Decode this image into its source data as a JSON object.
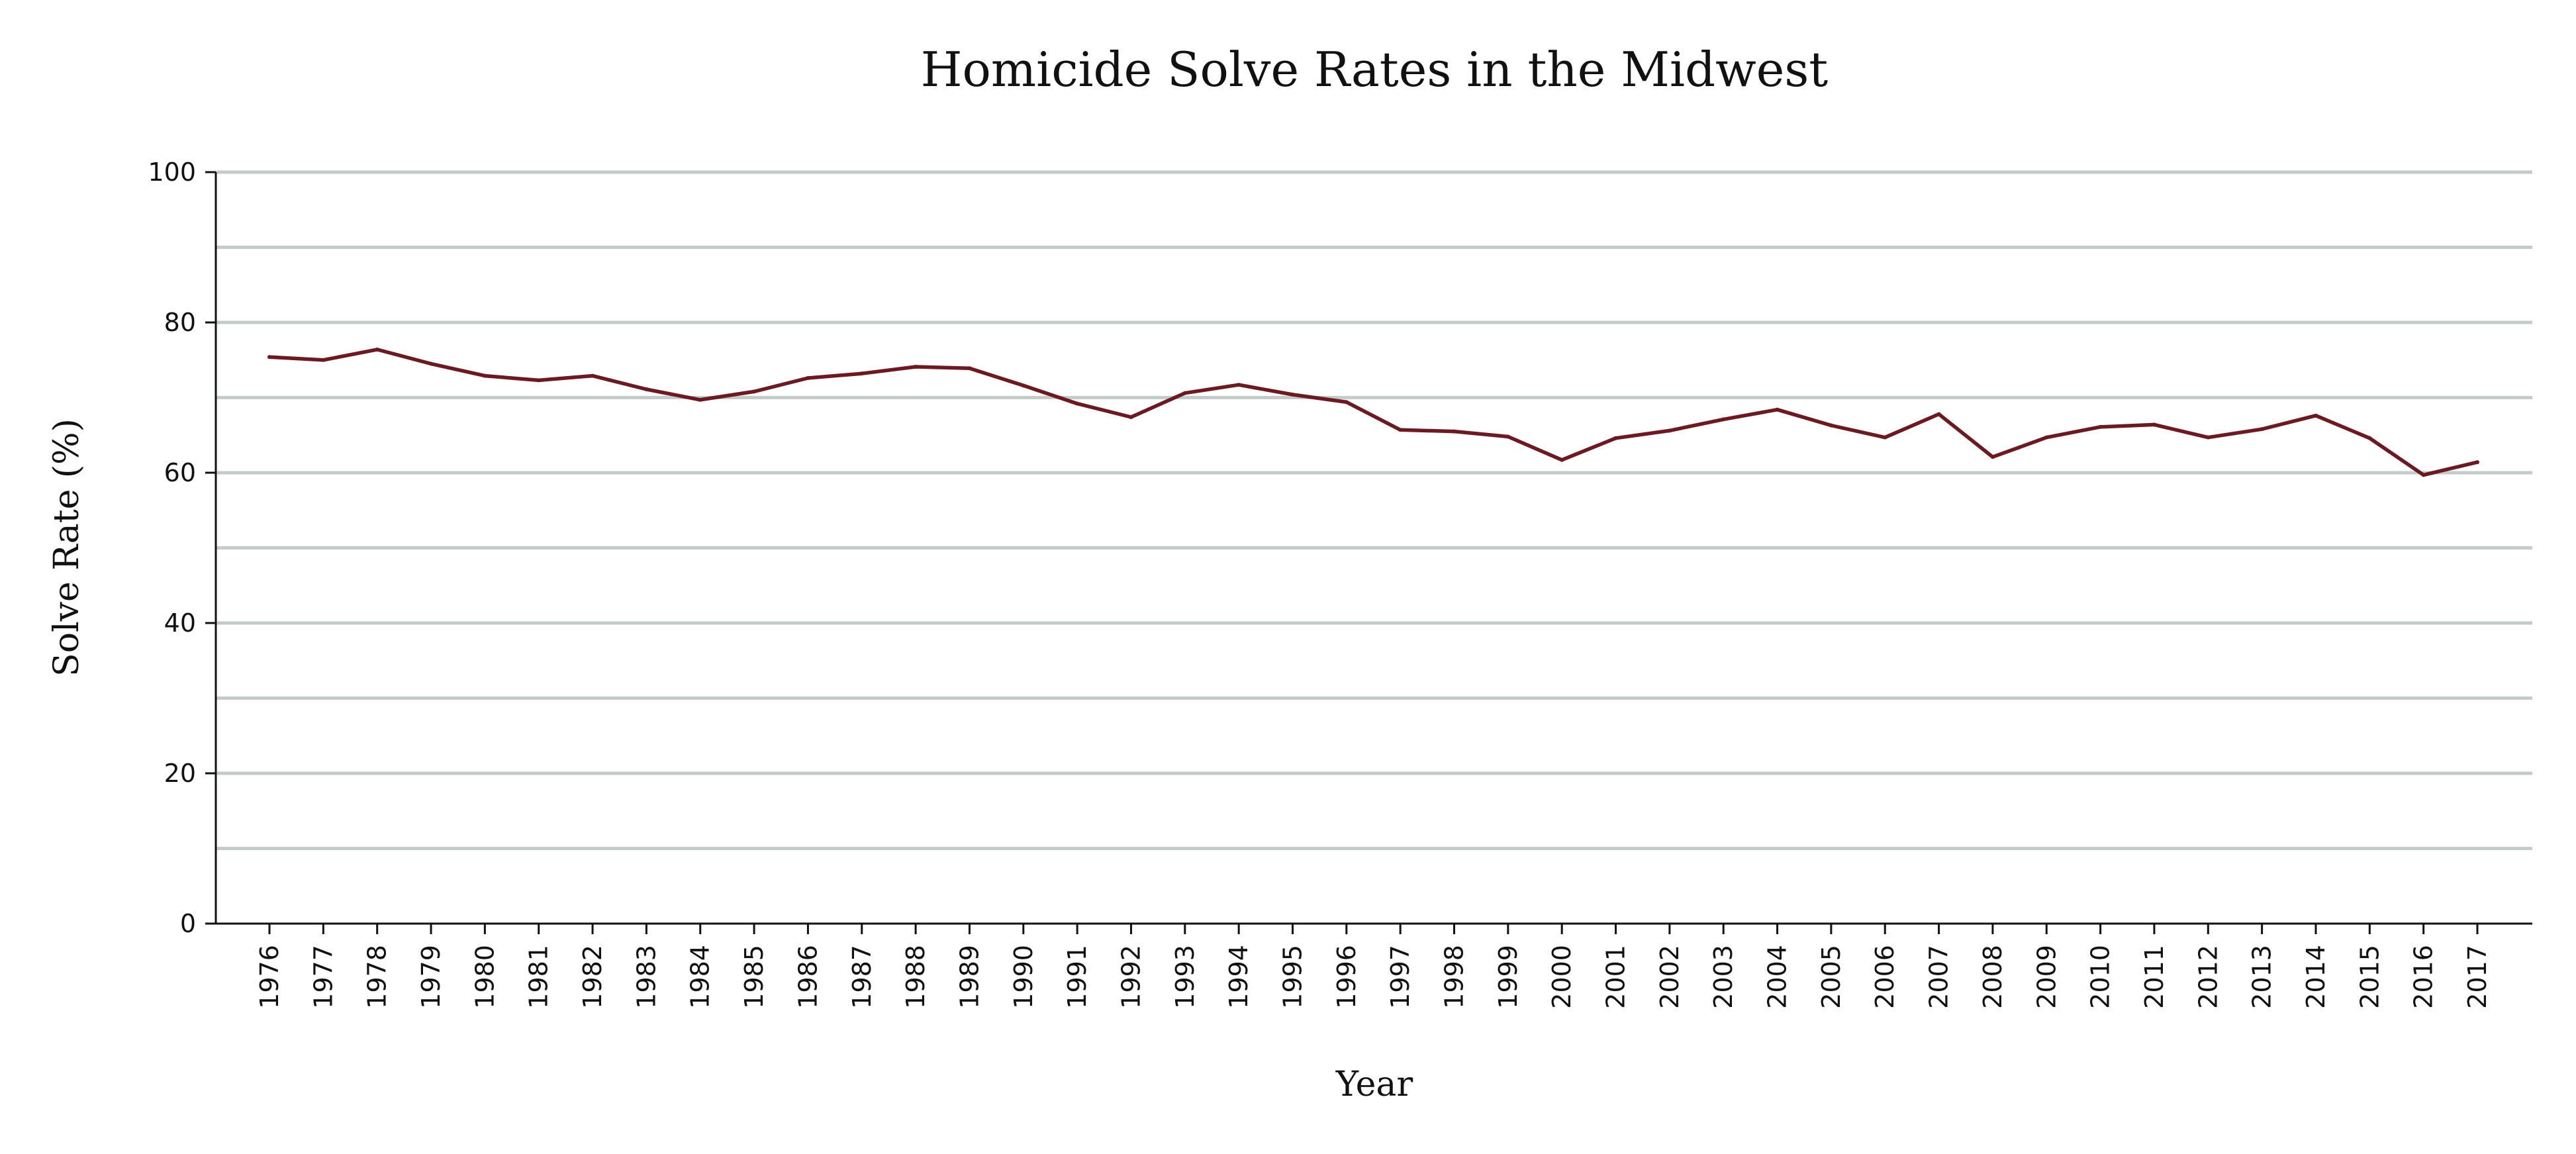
{
  "chart_data": {
    "type": "line",
    "title": "Homicide Solve Rates in the Midwest",
    "xlabel": "Year",
    "ylabel": "Solve Rate (%)",
    "ylim": [
      0,
      100
    ],
    "yticks": [
      0,
      20,
      40,
      60,
      80,
      100
    ],
    "grid": true,
    "categories": [
      "1976",
      "1977",
      "1978",
      "1979",
      "1980",
      "1981",
      "1982",
      "1983",
      "1984",
      "1985",
      "1986",
      "1987",
      "1988",
      "1989",
      "1990",
      "1991",
      "1992",
      "1993",
      "1994",
      "1995",
      "1996",
      "1997",
      "1998",
      "1999",
      "2000",
      "2001",
      "2002",
      "2003",
      "2004",
      "2005",
      "2006",
      "2007",
      "2008",
      "2009",
      "2010",
      "2011",
      "2012",
      "2013",
      "2014",
      "2015",
      "2016",
      "2017"
    ],
    "series": [
      {
        "color": "#6b1a22",
        "values": [
          75.4,
          75.0,
          76.4,
          74.5,
          72.9,
          72.3,
          72.9,
          71.1,
          69.7,
          70.8,
          72.6,
          73.2,
          74.1,
          73.9,
          71.6,
          69.2,
          67.4,
          70.6,
          71.7,
          70.4,
          69.4,
          65.7,
          65.5,
          64.8,
          61.7,
          64.6,
          65.6,
          67.1,
          68.4,
          66.3,
          64.7,
          67.8,
          62.1,
          64.7,
          66.1,
          66.4,
          64.7,
          65.8,
          67.6,
          64.6,
          59.7,
          61.4
        ]
      }
    ]
  }
}
